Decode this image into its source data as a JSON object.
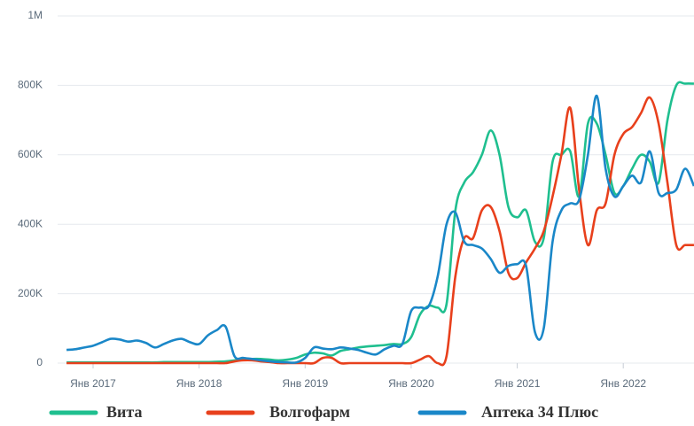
{
  "chart_data": {
    "type": "line",
    "categories": [
      null,
      null,
      null,
      "Янв 2017",
      null,
      null,
      null,
      null,
      null,
      null,
      null,
      null,
      null,
      null,
      null,
      "Янв 2018",
      null,
      null,
      null,
      null,
      null,
      null,
      null,
      null,
      null,
      null,
      null,
      "Янв 2019",
      null,
      null,
      null,
      null,
      null,
      null,
      null,
      null,
      null,
      null,
      null,
      "Янв 2020",
      null,
      null,
      null,
      null,
      null,
      null,
      null,
      null,
      null,
      null,
      null,
      "Янв 2021",
      null,
      null,
      null,
      null,
      null,
      null,
      null,
      null,
      null,
      null,
      null,
      "Янв 2022",
      null,
      null,
      null,
      null,
      null,
      null,
      null,
      null
    ],
    "series": [
      {
        "name": "Вита",
        "color": "#1fbf8f",
        "values": [
          2000,
          2000,
          2000,
          2000,
          2000,
          2000,
          2000,
          2000,
          2000,
          2000,
          2000,
          3000,
          3000,
          3000,
          3000,
          3000,
          3000,
          4000,
          5000,
          8000,
          10000,
          12000,
          12000,
          10000,
          8000,
          10000,
          15000,
          25000,
          30000,
          28000,
          22000,
          35000,
          40000,
          45000,
          48000,
          50000,
          52000,
          55000,
          55000,
          75000,
          140000,
          165000,
          160000,
          170000,
          440000,
          520000,
          550000,
          600000,
          670000,
          600000,
          450000,
          420000,
          440000,
          350000,
          360000,
          580000,
          600000,
          610000,
          480000,
          690000,
          690000,
          600000,
          490000,
          510000,
          560000,
          600000,
          580000,
          520000,
          700000,
          800000,
          805000,
          805000
        ]
      },
      {
        "name": "Волгофарм",
        "color": "#e8401c",
        "values": [
          0,
          0,
          0,
          0,
          0,
          0,
          0,
          0,
          0,
          0,
          0,
          0,
          0,
          0,
          0,
          0,
          0,
          0,
          0,
          5000,
          8000,
          8000,
          5000,
          3000,
          0,
          0,
          0,
          0,
          0,
          15000,
          15000,
          0,
          0,
          0,
          0,
          0,
          0,
          0,
          0,
          0,
          10000,
          20000,
          0,
          20000,
          250000,
          360000,
          360000,
          440000,
          450000,
          380000,
          260000,
          245000,
          290000,
          330000,
          380000,
          480000,
          600000,
          735000,
          500000,
          340000,
          440000,
          460000,
          600000,
          660000,
          680000,
          720000,
          765000,
          690000,
          520000,
          340000,
          340000,
          340000
        ]
      },
      {
        "name": "Аптека 34 Плюс",
        "color": "#1a87c8",
        "values": [
          38000,
          40000,
          45000,
          50000,
          60000,
          70000,
          68000,
          62000,
          65000,
          58000,
          45000,
          55000,
          65000,
          70000,
          60000,
          55000,
          80000,
          95000,
          105000,
          20000,
          15000,
          12000,
          8000,
          5000,
          3000,
          2000,
          2000,
          15000,
          45000,
          42000,
          40000,
          45000,
          42000,
          38000,
          30000,
          25000,
          40000,
          50000,
          55000,
          150000,
          160000,
          165000,
          250000,
          400000,
          434000,
          350000,
          340000,
          330000,
          300000,
          260000,
          280000,
          285000,
          280000,
          90000,
          100000,
          350000,
          440000,
          460000,
          470000,
          600000,
          770000,
          560000,
          480000,
          510000,
          540000,
          520000,
          610000,
          490000,
          490000,
          500000,
          560000,
          510000
        ]
      }
    ],
    "ylim": [
      0,
      1000000
    ],
    "yticks": [
      0,
      {
        "value": 200000,
        "label": "200K"
      },
      {
        "value": 400000,
        "label": "400K"
      },
      {
        "value": 600000,
        "label": "600K"
      },
      {
        "value": 800000,
        "label": "800K"
      },
      {
        "value": 1000000,
        "label": "1M"
      }
    ],
    "grid": true,
    "legend": "bottom"
  }
}
